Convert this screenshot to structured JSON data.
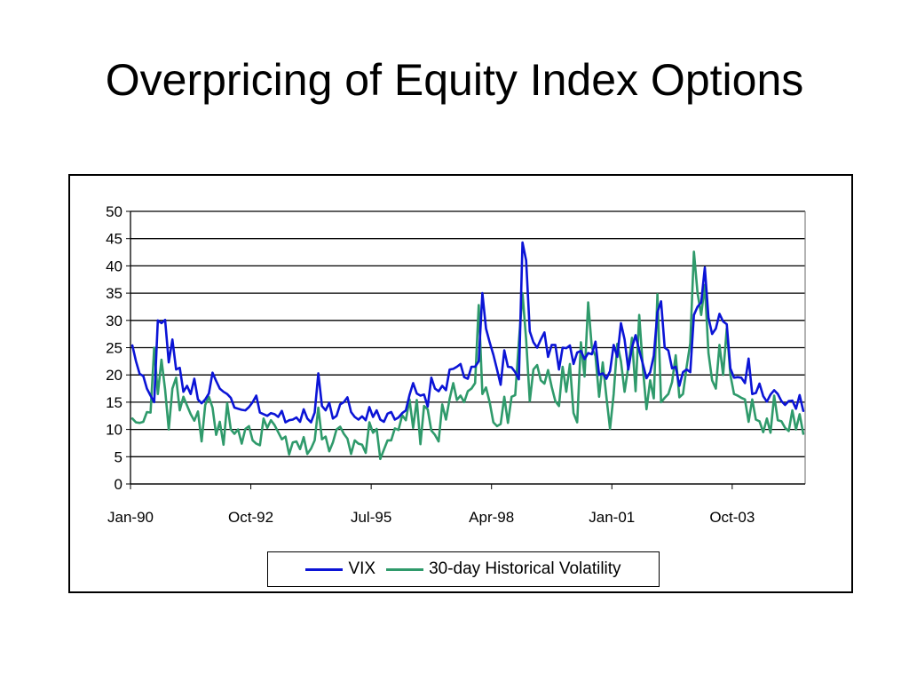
{
  "slide": {
    "title": "Overpricing of Equity Index Options"
  },
  "chart_data": {
    "type": "line",
    "title": "",
    "xlabel": "",
    "ylabel": "",
    "ylim": [
      0,
      50
    ],
    "y_ticks": [
      0,
      5,
      10,
      15,
      20,
      25,
      30,
      35,
      40,
      45,
      50
    ],
    "grid": "horizontal",
    "legend_position": "bottom",
    "x_ticks": [
      "Jan-90",
      "Oct-92",
      "Jul-95",
      "Apr-98",
      "Jan-01",
      "Oct-03"
    ],
    "x_start": "Jan-90",
    "series": [
      {
        "name": "VIX",
        "color": "#0b14d6",
        "values": [
          25.4,
          22.5,
          20.2,
          19.8,
          17.5,
          16.2,
          15.0,
          30.0,
          29.5,
          30.1,
          22.3,
          26.5,
          21.0,
          21.3,
          16.9,
          18.0,
          16.5,
          19.3,
          15.5,
          14.8,
          15.5,
          16.6,
          20.4,
          18.9,
          17.5,
          16.9,
          16.5,
          15.8,
          14.0,
          13.8,
          13.6,
          13.5,
          14.1,
          15.0,
          16.2,
          13.1,
          12.8,
          12.5,
          13.0,
          12.8,
          12.3,
          13.4,
          11.3,
          11.7,
          11.8,
          12.2,
          11.4,
          13.7,
          12.0,
          11.3,
          13.1,
          20.3,
          14.3,
          13.5,
          14.9,
          12.0,
          12.5,
          14.6,
          15.0,
          15.9,
          13.2,
          12.3,
          11.8,
          12.4,
          11.7,
          14.1,
          12.3,
          13.5,
          11.8,
          11.4,
          12.9,
          13.2,
          11.8,
          12.2,
          13.0,
          13.5,
          16.3,
          18.5,
          16.6,
          16.2,
          16.4,
          14.2,
          19.5,
          17.5,
          17.0,
          18.0,
          17.2,
          21.0,
          21.1,
          21.5,
          22.0,
          19.6,
          19.3,
          21.5,
          21.5,
          22.5,
          35.0,
          28.5,
          26.0,
          23.7,
          21.0,
          18.2,
          24.5,
          21.5,
          21.4,
          20.5,
          19.2,
          44.3,
          41.0,
          28.0,
          26.0,
          25.0,
          26.5,
          27.8,
          23.3,
          25.5,
          25.5,
          21.0,
          25.0,
          24.9,
          25.4,
          22.0,
          24.1,
          24.4,
          22.9,
          24.0,
          23.8,
          26.1,
          20.0,
          20.3,
          19.3,
          20.7,
          25.5,
          23.3,
          29.5,
          26.5,
          21.0,
          25.0,
          27.3,
          24.5,
          22.0,
          19.4,
          20.5,
          23.5,
          31.5,
          33.5,
          25.0,
          24.5,
          21.2,
          21.5,
          18.0,
          20.5,
          21.0,
          20.5,
          31.0,
          32.5,
          33.3,
          39.7,
          30.5,
          27.5,
          28.5,
          31.2,
          29.8,
          29.3,
          21.2,
          19.5,
          19.6,
          19.5,
          18.5,
          23.0,
          16.5,
          16.7,
          18.4,
          16.1,
          15.1,
          16.4,
          17.2,
          16.5,
          15.2,
          14.5,
          15.2,
          15.3,
          13.8,
          16.3,
          13.4
        ]
      },
      {
        "name": "30-day Historical Volatility",
        "color": "#2f9a6b",
        "values": [
          12.0,
          11.3,
          11.2,
          11.4,
          13.2,
          13.1,
          25.0,
          16.5,
          22.8,
          17.3,
          10.0,
          17.5,
          19.5,
          13.5,
          16.0,
          14.4,
          12.8,
          11.6,
          13.3,
          7.8,
          14.5,
          16.0,
          14.0,
          9.0,
          11.4,
          7.2,
          14.8,
          10.0,
          9.2,
          10.0,
          7.4,
          10.1,
          10.6,
          8.0,
          7.4,
          7.1,
          12.0,
          10.3,
          11.7,
          10.8,
          9.5,
          8.2,
          8.7,
          5.4,
          7.6,
          7.8,
          6.4,
          8.6,
          5.5,
          6.5,
          8.0,
          14.0,
          8.2,
          8.7,
          6.0,
          7.6,
          10.0,
          10.5,
          9.2,
          8.3,
          5.5,
          8.0,
          7.4,
          7.2,
          5.7,
          11.3,
          9.4,
          10.1,
          4.6,
          6.3,
          8.0,
          8.0,
          10.2,
          9.9,
          12.6,
          11.7,
          15.5,
          10.3,
          15.4,
          7.3,
          14.3,
          13.7,
          9.8,
          9.0,
          7.8,
          14.6,
          11.8,
          15.6,
          18.5,
          15.4,
          16.2,
          15.0,
          17.0,
          17.5,
          18.5,
          32.8,
          16.5,
          17.7,
          15.0,
          11.3,
          10.6,
          11.0,
          16.0,
          11.2,
          16.0,
          16.3,
          26.0,
          35.0,
          26.5,
          15.2,
          21.0,
          21.8,
          19.0,
          18.4,
          20.9,
          17.8,
          15.2,
          14.3,
          21.5,
          16.9,
          22.0,
          13.0,
          11.3,
          26.0,
          19.7,
          33.3,
          25.0,
          23.5,
          16.0,
          22.3,
          16.0,
          10.1,
          16.5,
          25.7,
          22.5,
          16.9,
          21.5,
          26.8,
          17.0,
          31.0,
          21.3,
          13.7,
          19.0,
          15.7,
          34.8,
          15.0,
          15.8,
          16.5,
          18.7,
          23.6,
          15.9,
          16.5,
          21.5,
          25.8,
          42.6,
          35.0,
          31.0,
          36.5,
          24.0,
          19.0,
          17.5,
          25.5,
          20.0,
          28.5,
          20.0,
          16.5,
          16.2,
          15.8,
          15.5,
          11.4,
          15.5,
          11.8,
          11.5,
          9.5,
          12.0,
          9.4,
          16.2,
          11.7,
          11.5,
          10.3,
          9.7,
          13.5,
          10.0,
          12.8,
          9.2
        ]
      }
    ]
  }
}
